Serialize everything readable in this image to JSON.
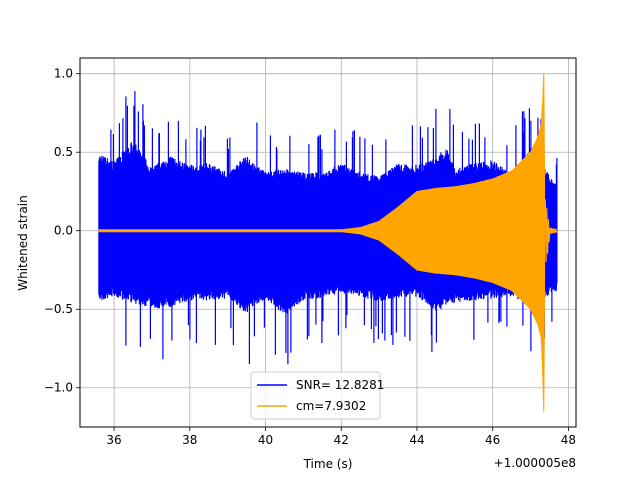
{
  "chart_data": {
    "type": "line",
    "xlabel": "Time (s)",
    "ylabel": "Whitened strain",
    "x_offset_label": "+1.000005e8",
    "xlim": [
      35.1,
      48.2
    ],
    "ylim": [
      -1.25,
      1.1
    ],
    "xticks": [
      "36",
      "38",
      "40",
      "42",
      "44",
      "46",
      "48"
    ],
    "yticks": [
      "−1.0",
      "−0.5",
      "0.0",
      "0.5",
      "1.0"
    ],
    "grid": true,
    "legend_position": "lower-center",
    "series": [
      {
        "name": "SNR= 12.8281",
        "color": "#0000ff",
        "x_range": [
          35.6,
          47.7
        ],
        "envelope_upper": [
          [
            35.6,
            0.82
          ],
          [
            36.0,
            0.74
          ],
          [
            36.5,
            0.96
          ],
          [
            37.0,
            0.68
          ],
          [
            37.5,
            0.8
          ],
          [
            38.0,
            0.7
          ],
          [
            38.5,
            0.72
          ],
          [
            39.0,
            0.62
          ],
          [
            39.5,
            0.8
          ],
          [
            40.0,
            0.62
          ],
          [
            40.5,
            0.66
          ],
          [
            41.0,
            0.62
          ],
          [
            41.5,
            0.62
          ],
          [
            42.0,
            0.72
          ],
          [
            42.5,
            0.62
          ],
          [
            43.0,
            0.58
          ],
          [
            43.5,
            0.72
          ],
          [
            44.0,
            0.7
          ],
          [
            44.5,
            0.78
          ],
          [
            44.8,
            0.9
          ],
          [
            45.0,
            0.65
          ],
          [
            45.5,
            0.72
          ],
          [
            46.0,
            0.75
          ],
          [
            46.5,
            0.62
          ],
          [
            47.0,
            0.88
          ],
          [
            47.3,
            0.7
          ],
          [
            47.7,
            0.48
          ]
        ],
        "envelope_lower": [
          [
            35.6,
            -0.75
          ],
          [
            36.0,
            -0.7
          ],
          [
            36.5,
            -0.77
          ],
          [
            37.0,
            -0.83
          ],
          [
            37.5,
            -0.82
          ],
          [
            38.0,
            -0.74
          ],
          [
            38.5,
            -0.74
          ],
          [
            39.0,
            -0.72
          ],
          [
            39.5,
            -0.88
          ],
          [
            40.0,
            -0.72
          ],
          [
            40.5,
            -0.9
          ],
          [
            41.0,
            -0.74
          ],
          [
            41.5,
            -0.72
          ],
          [
            42.0,
            -0.66
          ],
          [
            42.5,
            -0.7
          ],
          [
            43.0,
            -0.76
          ],
          [
            43.5,
            -0.72
          ],
          [
            44.0,
            -0.7
          ],
          [
            44.5,
            -0.86
          ],
          [
            45.0,
            -0.76
          ],
          [
            45.5,
            -0.74
          ],
          [
            46.0,
            -0.72
          ],
          [
            46.5,
            -0.7
          ],
          [
            47.0,
            -0.78
          ],
          [
            47.3,
            -0.72
          ],
          [
            47.7,
            -0.64
          ]
        ]
      },
      {
        "name": "cm=7.9302",
        "color": "#ffa500",
        "x_range": [
          35.6,
          47.7
        ],
        "envelope": [
          [
            35.6,
            0.006
          ],
          [
            40.0,
            0.006
          ],
          [
            42.0,
            0.006
          ],
          [
            42.5,
            0.02
          ],
          [
            43.0,
            0.06
          ],
          [
            43.5,
            0.15
          ],
          [
            44.0,
            0.25
          ],
          [
            44.5,
            0.27
          ],
          [
            45.0,
            0.28
          ],
          [
            45.5,
            0.3
          ],
          [
            46.0,
            0.33
          ],
          [
            46.5,
            0.38
          ],
          [
            47.0,
            0.5
          ],
          [
            47.2,
            0.6
          ],
          [
            47.3,
            0.7
          ]
        ],
        "peak": {
          "x": 47.35,
          "max": 1.0,
          "min": -1.15
        },
        "post_merger": [
          [
            47.4,
            0.2
          ],
          [
            47.5,
            0.02
          ],
          [
            47.7,
            0.01
          ]
        ]
      }
    ]
  }
}
